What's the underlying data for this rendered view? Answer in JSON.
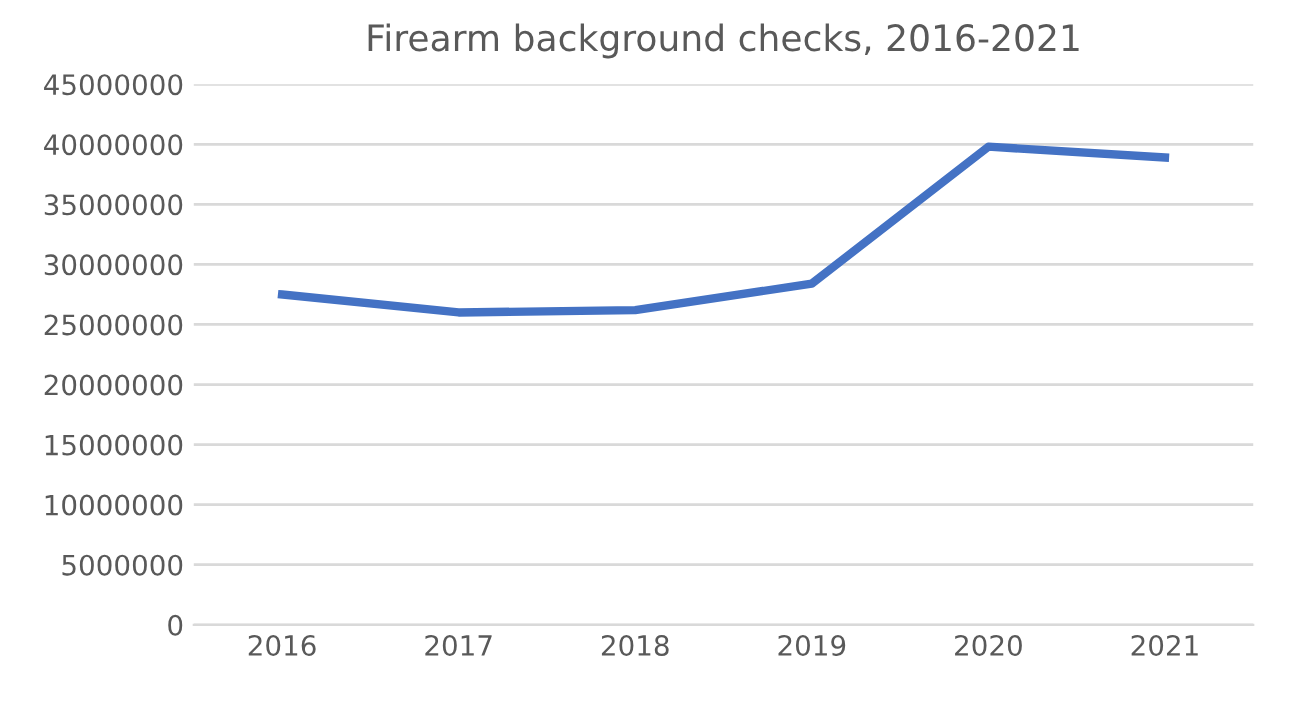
{
  "chart_data": {
    "type": "line",
    "title": "Firearm background checks, 2016-2021",
    "categories": [
      "2016",
      "2017",
      "2018",
      "2019",
      "2020",
      "2021"
    ],
    "series": [
      {
        "color": "#4472c4",
        "values": [
          27500000,
          26000000,
          26200000,
          28400000,
          39800000,
          38900000
        ]
      }
    ],
    "ylim": [
      0,
      45000000
    ],
    "yticks": [
      0,
      5000000,
      10000000,
      15000000,
      20000000,
      25000000,
      30000000,
      35000000,
      40000000,
      45000000
    ],
    "grid": "y",
    "marker": "none",
    "line_style": "solid"
  }
}
